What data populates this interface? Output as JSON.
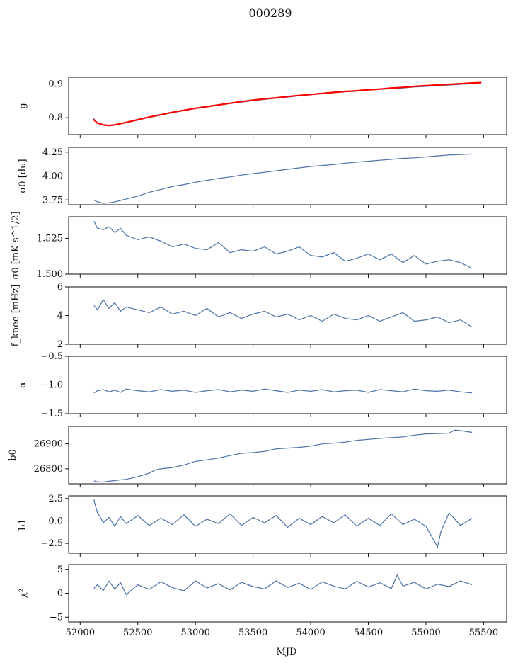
{
  "title": "000289",
  "xlabel": "MJD",
  "series_color": "#4a72a6",
  "model_color": "#ff0000",
  "chart_data": [
    {
      "type": "line",
      "ylabel": "g",
      "xlim": [
        51900,
        55700
      ],
      "ylim": [
        0.75,
        0.92
      ],
      "yticks": [
        0.8,
        0.9
      ],
      "ytick_labels": [
        "0.8",
        "0.9"
      ],
      "series": [
        {
          "values": {
            "x": [
              52110,
              52150,
              52200,
              52250,
              52300,
              52400,
              52500,
              52600,
              52700,
              52800,
              52900,
              53000,
              53100,
              53200,
              53300,
              53400,
              53500,
              53600,
              53700,
              53800,
              53900,
              54000,
              54100,
              54200,
              54300,
              54400,
              54500,
              54600,
              54700,
              54800,
              54900,
              55000,
              55100,
              55200,
              55300,
              55400
            ],
            "y": [
              0.8,
              0.785,
              0.778,
              0.776,
              0.778,
              0.785,
              0.793,
              0.801,
              0.808,
              0.815,
              0.821,
              0.827,
              0.832,
              0.837,
              0.842,
              0.846,
              0.851,
              0.854,
              0.858,
              0.861,
              0.865,
              0.868,
              0.871,
              0.874,
              0.877,
              0.879,
              0.882,
              0.884,
              0.886,
              0.888,
              0.891,
              0.893,
              0.895,
              0.897,
              0.899,
              0.901
            ]
          }
        },
        {
          "values": {
            "x": [
              52115,
              52150,
              52200,
              52250,
              52300,
              52400,
              52500,
              52600,
              52700,
              52800,
              52900,
              53000,
              53100,
              53200,
              53300,
              53400,
              53500,
              53600,
              53700,
              53800,
              53900,
              54000,
              54100,
              54200,
              54300,
              54400,
              54500,
              54600,
              54700,
              54800,
              54900,
              55000,
              55100,
              55200,
              55300,
              55400,
              55480
            ],
            "y": [
              0.795,
              0.784,
              0.779,
              0.777,
              0.779,
              0.786,
              0.794,
              0.802,
              0.809,
              0.816,
              0.822,
              0.828,
              0.833,
              0.838,
              0.843,
              0.848,
              0.852,
              0.856,
              0.859,
              0.863,
              0.866,
              0.869,
              0.872,
              0.875,
              0.878,
              0.88,
              0.883,
              0.885,
              0.888,
              0.89,
              0.893,
              0.895,
              0.897,
              0.899,
              0.901,
              0.903,
              0.904
            ]
          }
        }
      ]
    },
    {
      "type": "line",
      "ylabel": "σ0 [du]",
      "xlim": [
        51900,
        55700
      ],
      "ylim": [
        3.7,
        4.3
      ],
      "yticks": [
        3.75,
        4.0,
        4.25
      ],
      "ytick_labels": [
        "3.75",
        "4.00",
        "4.25"
      ],
      "series": [
        {
          "values": {
            "x": [
              52120,
              52150,
              52200,
              52250,
              52300,
              52400,
              52500,
              52600,
              52700,
              52800,
              52900,
              53000,
              53100,
              53200,
              53300,
              53400,
              53500,
              53600,
              53700,
              53800,
              53900,
              54000,
              54100,
              54200,
              54300,
              54400,
              54500,
              54600,
              54700,
              54800,
              54900,
              55000,
              55100,
              55200,
              55300,
              55400
            ],
            "y": [
              3.75,
              3.73,
              3.715,
              3.72,
              3.73,
              3.76,
              3.79,
              3.83,
              3.86,
              3.89,
              3.91,
              3.935,
              3.955,
              3.975,
              3.99,
              4.01,
              4.025,
              4.04,
              4.055,
              4.07,
              4.085,
              4.1,
              4.11,
              4.12,
              4.135,
              4.145,
              4.155,
              4.165,
              4.175,
              4.185,
              4.19,
              4.2,
              4.21,
              4.22,
              4.225,
              4.23
            ]
          }
        }
      ]
    },
    {
      "type": "line",
      "ylabel": "σ0 [mK s^1/2]",
      "xlim": [
        51900,
        55700
      ],
      "ylim": [
        1.5,
        1.54
      ],
      "yticks": [
        1.5,
        1.525
      ],
      "ytick_labels": [
        "1.500",
        "1.525"
      ],
      "series": [
        {
          "values": {
            "x": [
              52120,
              52150,
              52200,
              52250,
              52300,
              52350,
              52400,
              52500,
              52600,
              52700,
              52800,
              52900,
              53000,
              53100,
              53200,
              53300,
              53400,
              53500,
              53600,
              53700,
              53800,
              53900,
              54000,
              54100,
              54200,
              54300,
              54400,
              54500,
              54600,
              54700,
              54800,
              54900,
              55000,
              55100,
              55200,
              55300,
              55400
            ],
            "y": [
              1.537,
              1.532,
              1.531,
              1.533,
              1.529,
              1.532,
              1.527,
              1.524,
              1.526,
              1.523,
              1.519,
              1.521,
              1.518,
              1.517,
              1.522,
              1.515,
              1.517,
              1.516,
              1.519,
              1.514,
              1.516,
              1.519,
              1.513,
              1.512,
              1.515,
              1.509,
              1.511,
              1.514,
              1.51,
              1.514,
              1.508,
              1.513,
              1.507,
              1.509,
              1.51,
              1.508,
              1.504
            ]
          }
        }
      ]
    },
    {
      "type": "line",
      "ylabel": "f_knee [mHz]",
      "xlim": [
        51900,
        55700
      ],
      "ylim": [
        2,
        6
      ],
      "yticks": [
        2,
        4,
        6
      ],
      "ytick_labels": [
        "2",
        "4",
        "6"
      ],
      "series": [
        {
          "values": {
            "x": [
              52120,
              52150,
              52200,
              52250,
              52300,
              52350,
              52400,
              52500,
              52600,
              52700,
              52800,
              52900,
              53000,
              53100,
              53200,
              53300,
              53400,
              53500,
              53600,
              53700,
              53800,
              53900,
              54000,
              54100,
              54200,
              54300,
              54400,
              54500,
              54600,
              54700,
              54800,
              54900,
              55000,
              55100,
              55200,
              55300,
              55400
            ],
            "y": [
              4.7,
              4.4,
              5.1,
              4.5,
              4.9,
              4.3,
              4.6,
              4.4,
              4.2,
              4.6,
              4.1,
              4.3,
              4.0,
              4.5,
              3.9,
              4.2,
              3.8,
              4.1,
              4.3,
              3.9,
              4.1,
              3.7,
              4.0,
              3.6,
              4.1,
              3.8,
              3.7,
              4.0,
              3.6,
              3.9,
              4.2,
              3.6,
              3.7,
              3.9,
              3.5,
              3.7,
              3.2
            ]
          }
        }
      ]
    },
    {
      "type": "line",
      "ylabel": "α",
      "xlim": [
        51900,
        55700
      ],
      "ylim": [
        -1.5,
        -0.5
      ],
      "yticks": [
        -1.5,
        -1.0,
        -0.5
      ],
      "ytick_labels": [
        "−1.5",
        "−1.0",
        "−0.5"
      ],
      "series": [
        {
          "values": {
            "x": [
              52120,
              52150,
              52200,
              52250,
              52300,
              52350,
              52400,
              52500,
              52600,
              52700,
              52800,
              52900,
              53000,
              53100,
              53200,
              53300,
              53400,
              53500,
              53600,
              53700,
              53800,
              53900,
              54000,
              54100,
              54200,
              54300,
              54400,
              54500,
              54600,
              54700,
              54800,
              54900,
              55000,
              55100,
              55200,
              55300,
              55400
            ],
            "y": [
              -1.14,
              -1.1,
              -1.08,
              -1.12,
              -1.09,
              -1.13,
              -1.07,
              -1.1,
              -1.12,
              -1.08,
              -1.11,
              -1.09,
              -1.13,
              -1.1,
              -1.08,
              -1.12,
              -1.09,
              -1.11,
              -1.07,
              -1.1,
              -1.13,
              -1.09,
              -1.11,
              -1.08,
              -1.12,
              -1.1,
              -1.09,
              -1.13,
              -1.08,
              -1.1,
              -1.12,
              -1.07,
              -1.1,
              -1.11,
              -1.09,
              -1.12,
              -1.14
            ]
          }
        }
      ]
    },
    {
      "type": "line",
      "ylabel": "b0",
      "xlim": [
        51900,
        55700
      ],
      "ylim": [
        26740,
        26970
      ],
      "yticks": [
        26800,
        26900
      ],
      "ytick_labels": [
        "26800",
        "26900"
      ],
      "series": [
        {
          "values": {
            "x": [
              52120,
              52150,
              52200,
              52300,
              52400,
              52500,
              52600,
              52650,
              52700,
              52800,
              52900,
              53000,
              53100,
              53200,
              53300,
              53400,
              53500,
              53600,
              53700,
              53800,
              53900,
              54000,
              54100,
              54200,
              54300,
              54400,
              54500,
              54600,
              54700,
              54800,
              54900,
              55000,
              55100,
              55200,
              55250,
              55300,
              55400
            ],
            "y": [
              26752,
              26748,
              26747,
              26753,
              26758,
              26768,
              26783,
              26795,
              26800,
              26805,
              26815,
              26830,
              26836,
              26843,
              26853,
              26862,
              26865,
              26870,
              26880,
              26883,
              26886,
              26891,
              26900,
              26903,
              26907,
              26914,
              26918,
              26922,
              26925,
              26928,
              26935,
              26940,
              26941,
              26943,
              26955,
              26953,
              26946
            ]
          }
        }
      ]
    },
    {
      "type": "line",
      "ylabel": "b1",
      "xlim": [
        51900,
        55700
      ],
      "ylim": [
        -3.6,
        2.8
      ],
      "yticks": [
        -2.5,
        0.0,
        2.5
      ],
      "ytick_labels": [
        "−2.5",
        "0.0",
        "2.5"
      ],
      "series": [
        {
          "values": {
            "x": [
              52120,
              52130,
              52150,
              52180,
              52200,
              52250,
              52300,
              52350,
              52400,
              52500,
              52600,
              52700,
              52800,
              52900,
              53000,
              53100,
              53200,
              53300,
              53400,
              53500,
              53600,
              53700,
              53800,
              53900,
              54000,
              54100,
              54200,
              54300,
              54400,
              54500,
              54600,
              54700,
              54800,
              54900,
              55000,
              55100,
              55130,
              55200,
              55300,
              55400
            ],
            "y": [
              2.4,
              1.8,
              0.9,
              0.3,
              -0.2,
              0.4,
              -0.6,
              0.5,
              -0.3,
              0.6,
              -0.5,
              0.3,
              -0.4,
              0.7,
              -0.6,
              0.2,
              -0.3,
              0.8,
              -0.5,
              0.4,
              -0.2,
              0.6,
              -0.7,
              0.3,
              -0.4,
              0.5,
              -0.2,
              0.7,
              -0.6,
              0.3,
              -0.5,
              0.8,
              -0.4,
              0.2,
              -0.6,
              -2.9,
              -1.2,
              0.9,
              -0.5,
              0.3
            ]
          }
        }
      ]
    },
    {
      "type": "line",
      "ylabel": "χ²",
      "xlim": [
        51900,
        55700
      ],
      "ylim": [
        -6,
        6
      ],
      "yticks": [
        -5,
        0,
        5
      ],
      "ytick_labels": [
        "−5",
        "0",
        "5"
      ],
      "xticks": [
        52000,
        52500,
        53000,
        53500,
        54000,
        54500,
        55000,
        55500
      ],
      "xtick_labels": [
        "52000",
        "52500",
        "53000",
        "53500",
        "54000",
        "54500",
        "55000",
        "55500"
      ],
      "series": [
        {
          "values": {
            "x": [
              52120,
              52150,
              52200,
              52250,
              52300,
              52350,
              52400,
              52500,
              52600,
              52700,
              52800,
              52900,
              53000,
              53100,
              53200,
              53300,
              53400,
              53500,
              53600,
              53700,
              53800,
              53900,
              54000,
              54100,
              54200,
              54300,
              54400,
              54500,
              54600,
              54700,
              54750,
              54800,
              54900,
              55000,
              55100,
              55200,
              55300,
              55400
            ],
            "y": [
              1.0,
              1.8,
              0.6,
              2.5,
              0.9,
              2.2,
              -0.3,
              1.8,
              0.8,
              2.4,
              1.2,
              0.5,
              2.6,
              1.1,
              2.0,
              0.7,
              2.3,
              1.4,
              0.9,
              2.6,
              1.2,
              2.1,
              0.8,
              2.4,
              1.5,
              0.9,
              2.5,
              1.3,
              2.2,
              1.0,
              3.8,
              1.5,
              2.3,
              0.9,
              1.9,
              1.4,
              2.6,
              1.8
            ]
          }
        }
      ]
    }
  ]
}
